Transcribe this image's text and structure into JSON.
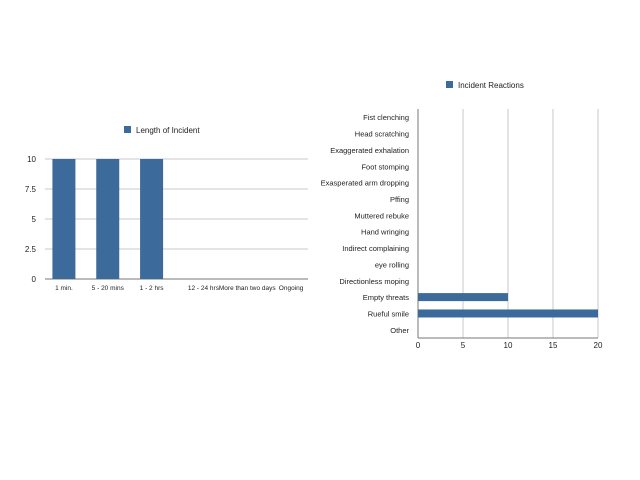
{
  "colors": {
    "bar": "#3b6a9b",
    "grid": "#c8c8c8"
  },
  "chart_data": [
    {
      "type": "bar",
      "orientation": "vertical",
      "legend": "Length of Incident",
      "legend_placement": "top-center",
      "grid": true,
      "categories": [
        "1  min.",
        "5 - 20 mins",
        "1 - 2 hrs",
        "12 - 24 hrs",
        "More than two days",
        "Ongoing"
      ],
      "series": [
        {
          "name": "Length of Incident",
          "values": [
            10,
            10,
            10,
            0,
            0,
            0
          ]
        }
      ],
      "ylim": [
        0,
        10
      ],
      "yticks": [
        "0",
        "2.5",
        "5",
        "7.5",
        "10"
      ]
    },
    {
      "type": "bar",
      "orientation": "horizontal",
      "legend": "Incident Reactions",
      "legend_placement": "top-center",
      "grid": true,
      "categories": [
        "Fist clenching",
        "Head scratching",
        "Exaggerated exhalation",
        "Foot stomping",
        "Exasperated arm dropping",
        "Pffing",
        "Muttered rebuke",
        "Hand wringing",
        "Indirect complaining",
        "eye rolling",
        "Directionless moping",
        "Empty threats",
        "Rueful smile",
        "Other"
      ],
      "series": [
        {
          "name": "Incident Reactions",
          "values": [
            0,
            0,
            0,
            0,
            0,
            0,
            0,
            0,
            0,
            0,
            0,
            10,
            20,
            0
          ]
        }
      ],
      "xlim": [
        0,
        20
      ],
      "xticks": [
        "0",
        "5",
        "10",
        "15",
        "20"
      ]
    }
  ]
}
